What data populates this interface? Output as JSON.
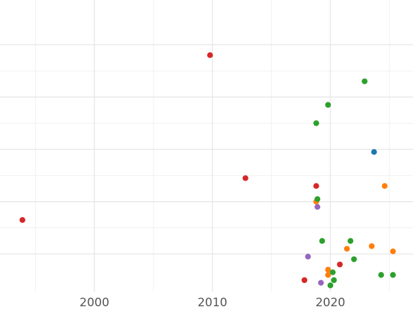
{
  "chart_data": {
    "type": "scatter",
    "title": "",
    "xlabel": "",
    "ylabel": "",
    "xlim": [
      1992,
      2027
    ],
    "ylim": [
      0,
      10
    ],
    "x_ticks": [
      {
        "value": 2000,
        "label": "2000"
      },
      {
        "value": 2010,
        "label": "2010"
      },
      {
        "value": 2020,
        "label": "2020"
      }
    ],
    "x_minor_gridlines": [
      1995,
      2005,
      2015,
      2025
    ],
    "y_gridlines": [
      1.0,
      3.0,
      5.0,
      7.0,
      9.0
    ],
    "y_minor_gridlines": [
      2.0,
      4.0,
      6.0,
      8.0
    ],
    "legend": "none",
    "grid": true,
    "colors": {
      "blue": "#1f77b4",
      "orange": "#ff7f0e",
      "green": "#2ca02c",
      "red": "#d62728",
      "purple": "#9467bd",
      "grid": "#e6e6e6",
      "tick_text": "#555555"
    },
    "series": [
      {
        "color": "#1f77b4",
        "points": [
          [
            2023.7,
            4.9
          ]
        ]
      },
      {
        "color": "#ff7f0e",
        "points": [
          [
            2024.6,
            3.6
          ],
          [
            2018.8,
            3.0
          ],
          [
            2023.5,
            1.3
          ],
          [
            2021.4,
            1.2
          ],
          [
            2025.3,
            1.1
          ],
          [
            2019.8,
            0.2
          ],
          [
            2019.8,
            0.4
          ]
        ]
      },
      {
        "color": "#2ca02c",
        "points": [
          [
            2022.9,
            7.6
          ],
          [
            2019.8,
            6.7
          ],
          [
            2018.8,
            6.0
          ],
          [
            2018.9,
            3.1
          ],
          [
            2019.3,
            1.5
          ],
          [
            2021.7,
            1.5
          ],
          [
            2022.0,
            0.8
          ],
          [
            2020.2,
            0.3
          ],
          [
            2024.3,
            0.2
          ],
          [
            2025.3,
            0.2
          ],
          [
            2020.3,
            0.0
          ],
          [
            2020.0,
            -0.2
          ]
        ]
      },
      {
        "color": "#d62728",
        "points": [
          [
            2009.8,
            8.6
          ],
          [
            2012.8,
            3.9
          ],
          [
            2018.8,
            3.6
          ],
          [
            1993.9,
            2.3
          ],
          [
            2020.8,
            0.6
          ],
          [
            2017.8,
            0.0
          ]
        ]
      },
      {
        "color": "#9467bd",
        "points": [
          [
            2018.9,
            2.8
          ],
          [
            2018.1,
            0.9
          ],
          [
            2019.2,
            -0.1
          ]
        ]
      }
    ]
  }
}
